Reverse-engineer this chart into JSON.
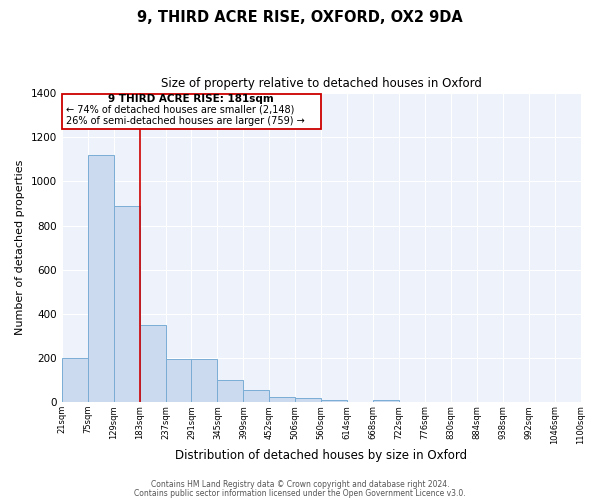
{
  "title": "9, THIRD ACRE RISE, OXFORD, OX2 9DA",
  "subtitle": "Size of property relative to detached houses in Oxford",
  "xlabel": "Distribution of detached houses by size in Oxford",
  "ylabel": "Number of detached properties",
  "bar_color": "#ccdaf0",
  "bar_edge_color": "#7aadd4",
  "background_color": "#eef3fb",
  "grid_color": "#ffffff",
  "annotation_box_color": "#cc0000",
  "vline_color": "#cc0000",
  "vline_x": 183,
  "categories": [
    "21sqm",
    "75sqm",
    "129sqm",
    "183sqm",
    "237sqm",
    "291sqm",
    "345sqm",
    "399sqm",
    "452sqm",
    "506sqm",
    "560sqm",
    "614sqm",
    "668sqm",
    "722sqm",
    "776sqm",
    "830sqm",
    "884sqm",
    "938sqm",
    "992sqm",
    "1046sqm",
    "1100sqm"
  ],
  "bin_edges": [
    21,
    75,
    129,
    183,
    237,
    291,
    345,
    399,
    452,
    506,
    560,
    614,
    668,
    722,
    776,
    830,
    884,
    938,
    992,
    1046,
    1100
  ],
  "bar_heights": [
    200,
    1120,
    890,
    350,
    195,
    195,
    100,
    55,
    25,
    20,
    10,
    0,
    10,
    0,
    0,
    0,
    0,
    0,
    0,
    0
  ],
  "ylim": [
    0,
    1400
  ],
  "yticks": [
    0,
    200,
    400,
    600,
    800,
    1000,
    1200,
    1400
  ],
  "annotation_line1": "9 THIRD ACRE RISE: 181sqm",
  "annotation_line2": "← 74% of detached houses are smaller (2,148)",
  "annotation_line3": "26% of semi-detached houses are larger (759) →",
  "footer_line1": "Contains HM Land Registry data © Crown copyright and database right 2024.",
  "footer_line2": "Contains public sector information licensed under the Open Government Licence v3.0.",
  "figsize": [
    6.0,
    5.0
  ],
  "dpi": 100
}
